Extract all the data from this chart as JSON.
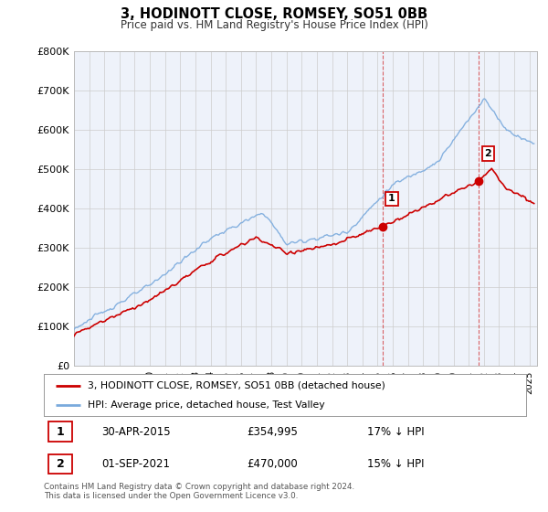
{
  "title": "3, HODINOTT CLOSE, ROMSEY, SO51 0BB",
  "subtitle": "Price paid vs. HM Land Registry's House Price Index (HPI)",
  "ylabel_ticks": [
    "£0",
    "£100K",
    "£200K",
    "£300K",
    "£400K",
    "£500K",
    "£600K",
    "£700K",
    "£800K"
  ],
  "ytick_values": [
    0,
    100000,
    200000,
    300000,
    400000,
    500000,
    600000,
    700000,
    800000
  ],
  "ylim": [
    0,
    800000
  ],
  "xlim_start": 1995.0,
  "xlim_end": 2025.5,
  "hpi_color": "#7aaadd",
  "price_color": "#cc0000",
  "marker1_year": 2015.33,
  "marker1_value": 354995,
  "marker2_year": 2021.67,
  "marker2_value": 470000,
  "legend_label1": "3, HODINOTT CLOSE, ROMSEY, SO51 0BB (detached house)",
  "legend_label2": "HPI: Average price, detached house, Test Valley",
  "table_row1_num": "1",
  "table_row1_date": "30-APR-2015",
  "table_row1_price": "£354,995",
  "table_row1_hpi": "17% ↓ HPI",
  "table_row2_num": "2",
  "table_row2_date": "01-SEP-2021",
  "table_row2_price": "£470,000",
  "table_row2_hpi": "15% ↓ HPI",
  "footer": "Contains HM Land Registry data © Crown copyright and database right 2024.\nThis data is licensed under the Open Government Licence v3.0.",
  "bg_color": "#ffffff",
  "plot_bg_color": "#eef2fa",
  "grid_color": "#cccccc",
  "vline_color": "#cc0000",
  "vline1_year": 2015.33,
  "vline2_year": 2021.67
}
